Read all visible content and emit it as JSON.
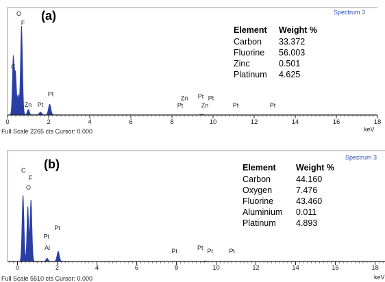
{
  "chart_data": [
    {
      "type": "spectrum",
      "panel_label": "(a)",
      "spectrum_name": "Spectrum 3",
      "footer": "Full Scale 2265 cts Cursor: 0.000",
      "xlabel": "keV",
      "xlim": [
        0,
        18
      ],
      "ylim": [
        0,
        2265
      ],
      "x_ticks": [
        "0",
        "2",
        "4",
        "6",
        "8",
        "10",
        "12",
        "14",
        "16",
        "18"
      ],
      "peaks": [
        {
          "x": 0.28,
          "y": 1280,
          "width": 0.045
        },
        {
          "x": 0.39,
          "y": 900,
          "width": 0.045
        },
        {
          "x": 0.52,
          "y": 430,
          "width": 0.04
        },
        {
          "x": 0.68,
          "y": 1980,
          "width": 0.05
        },
        {
          "x": 1.01,
          "y": 120,
          "width": 0.05
        },
        {
          "x": 1.6,
          "y": 60,
          "width": 0.06
        },
        {
          "x": 2.05,
          "y": 240,
          "width": 0.06
        },
        {
          "x": 9.44,
          "y": 18,
          "width": 0.08
        }
      ],
      "peak_labels": [
        {
          "text": "O",
          "x": 0.55,
          "y": 2220
        },
        {
          "text": "F",
          "x": 0.75,
          "y": 2010
        },
        {
          "text": "C",
          "x": 0.28,
          "y": 1030
        },
        {
          "text": "Zn",
          "x": 1.0,
          "y": 180
        },
        {
          "text": "Pt",
          "x": 1.6,
          "y": 180
        },
        {
          "text": "Pt",
          "x": 2.1,
          "y": 420
        },
        {
          "text": "Zn",
          "x": 8.6,
          "y": 330
        },
        {
          "text": "Pt",
          "x": 8.4,
          "y": 170
        },
        {
          "text": "Pt",
          "x": 9.4,
          "y": 370
        },
        {
          "text": "Pt",
          "x": 9.9,
          "y": 330
        },
        {
          "text": "Zn",
          "x": 9.6,
          "y": 170
        },
        {
          "text": "Pt",
          "x": 11.1,
          "y": 170
        },
        {
          "text": "Pt",
          "x": 12.9,
          "y": 170
        }
      ],
      "table": {
        "headers": [
          "Element",
          "Weight %"
        ],
        "rows": [
          [
            "Carbon",
            "33.372"
          ],
          [
            "Fluorine",
            "56.003"
          ],
          [
            "Zinc",
            "0.501"
          ],
          [
            "Platinum",
            "4.625"
          ]
        ]
      },
      "colors": {
        "spectrum": "#2a3fa6",
        "axis": "#222222"
      }
    },
    {
      "type": "spectrum",
      "panel_label": "(b)",
      "spectrum_name": "Spectrum 3",
      "footer": "Full Scale 5510 cts Cursor: 0.000",
      "xlabel": "keV",
      "xlim": [
        -0.5,
        18.5
      ],
      "ylim": [
        0,
        5510
      ],
      "x_ticks": [
        "0",
        "2",
        "4",
        "6",
        "8",
        "10",
        "12",
        "14",
        "16",
        "18"
      ],
      "peaks": [
        {
          "x": 0.28,
          "y": 3450,
          "width": 0.05
        },
        {
          "x": 0.52,
          "y": 2850,
          "width": 0.045
        },
        {
          "x": 0.68,
          "y": 3200,
          "width": 0.05
        },
        {
          "x": 1.49,
          "y": 160,
          "width": 0.05
        },
        {
          "x": 2.05,
          "y": 520,
          "width": 0.06
        },
        {
          "x": 9.44,
          "y": 30,
          "width": 0.08
        }
      ],
      "peak_labels": [
        {
          "text": "C",
          "x": 0.3,
          "y": 4650
        },
        {
          "text": "F",
          "x": 0.65,
          "y": 4250
        },
        {
          "text": "O",
          "x": 0.55,
          "y": 3750
        },
        {
          "text": "Pt",
          "x": 2.0,
          "y": 1650
        },
        {
          "text": "Pt",
          "x": 1.45,
          "y": 1200
        },
        {
          "text": "Al",
          "x": 1.5,
          "y": 600
        },
        {
          "text": "Pt",
          "x": 7.9,
          "y": 430
        },
        {
          "text": "Pt",
          "x": 9.2,
          "y": 600
        },
        {
          "text": "Pt",
          "x": 9.7,
          "y": 430
        },
        {
          "text": "Pt",
          "x": 10.8,
          "y": 430
        }
      ],
      "table": {
        "headers": [
          "Element",
          "Weight %"
        ],
        "rows": [
          [
            "Carbon",
            "44.160"
          ],
          [
            "Oxygen",
            "7.476"
          ],
          [
            "Fluorine",
            "43.460"
          ],
          [
            "Aluminium",
            "0.011"
          ],
          [
            "Platinum",
            "4.893"
          ]
        ]
      },
      "colors": {
        "spectrum": "#2a3fa6",
        "axis": "#222222"
      }
    }
  ]
}
